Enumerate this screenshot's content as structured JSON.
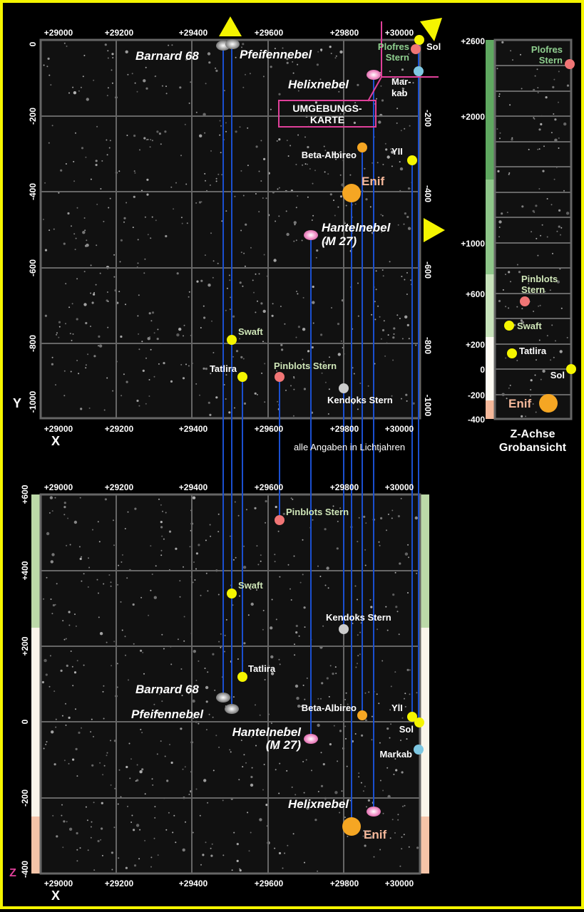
{
  "xy_map": {
    "x_ticks": [
      "+29000",
      "+29200",
      "+29400",
      "+29600",
      "+29800",
      "+30000"
    ],
    "y_ticks_left": [
      "0",
      "-200",
      "-400",
      "-600",
      "-800",
      "-1000"
    ],
    "y_ticks_right": [
      "-200",
      "-400",
      "-600",
      "-800",
      "-1000"
    ],
    "x_axis_letter": "X",
    "y_axis_letter": "Y",
    "note": "alle Angaben in Lichtjahren",
    "inset_label": [
      "UMGEBUNGS-",
      "KARTE"
    ],
    "labels": {
      "barnard": "Barnard 68",
      "pfeife": "Pfeifennebel",
      "plofres": [
        "Plofres",
        "Stern"
      ],
      "sol": "Sol",
      "helix": "Helixnebel",
      "markab": [
        "Mar-",
        "kab"
      ],
      "beta": "Beta-Albireo",
      "yii": "YII",
      "enif": "Enif",
      "hantel": [
        "Hantelnebel",
        "(M 27)"
      ],
      "swaft": "Swaft",
      "tatlira": "Tatlira",
      "pinblots": "Pinblots Stern",
      "kendoks": "Kendoks Stern"
    }
  },
  "xz_map": {
    "x_ticks": [
      "+29000",
      "+29200",
      "+29400",
      "+29600",
      "+29800",
      "+30000"
    ],
    "z_ticks": [
      "+600",
      "+400",
      "+200",
      "0",
      "-200",
      "-400"
    ],
    "x_axis_letter": "X",
    "z_axis_letter": "Z",
    "labels": {
      "pinblots": "Pinblots Stern",
      "swaft": "Swaft",
      "kendoks": "Kendoks Stern",
      "tatlira": "Tatlira",
      "barnard": "Barnard 68",
      "pfeife": "Pfeifennebel",
      "beta": "Beta-Albireo",
      "yii": "YII",
      "sol": "Sol",
      "hantel": [
        "Hantelnebel",
        "(M 27)"
      ],
      "markab": "Markab",
      "helix": "Helixnebel",
      "enif": "Enif"
    }
  },
  "z_overview": {
    "ticks": [
      "+2600",
      "+2000",
      "+1000",
      "+600",
      "+200",
      "0",
      "-200",
      "-400"
    ],
    "title": [
      "Z-Achse",
      "Grobansicht"
    ],
    "labels": {
      "plofres": [
        "Plofres",
        "Stern"
      ],
      "pinblots": [
        "Pinblots",
        "Stern"
      ],
      "swaft": "Swaft",
      "tatlira": "Tatlira",
      "sol": "Sol",
      "enif": "Enif"
    }
  },
  "colors": {
    "frame": "#f5f500",
    "yellow_star": "#f5f500",
    "orange_star": "#f5a623",
    "red_star": "#f07575",
    "cyan_star": "#7ec8e3",
    "grey_star": "#cccccc",
    "nebula_pink": "#f5a0d0",
    "connector": "#1a4fd0",
    "inset": "#e0409a",
    "label_green": "#8fcf8f",
    "label_peach": "#f5b89a"
  }
}
